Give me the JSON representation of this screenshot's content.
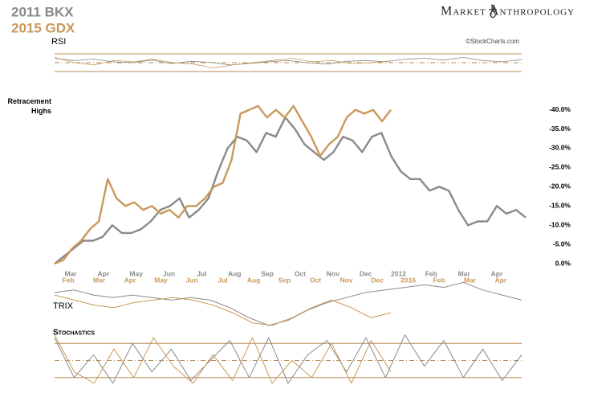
{
  "header": {
    "brand": "Market Anthropology",
    "credit": "©StockCharts.com"
  },
  "chart_data": [
    {
      "type": "line",
      "annotation": "Retracement Highs",
      "series": [
        {
          "name": "2011 BKX",
          "color": "#8a8a8a",
          "values": [
            0,
            -2,
            -4,
            -6,
            -6,
            -7,
            -10,
            -8,
            -8,
            -9,
            -11,
            -14,
            -15,
            -17,
            -12,
            -14,
            -17,
            -24,
            -30,
            -33,
            -32,
            -29,
            -34,
            -33,
            -38,
            -35,
            -31,
            -29,
            -27,
            -29,
            -33,
            -32,
            -29,
            -33,
            -34,
            -28,
            -24,
            -22,
            -22,
            -19,
            -20,
            -19,
            -14,
            -10,
            -11,
            -11,
            -15,
            -13,
            -14,
            -12
          ]
        },
        {
          "name": "2015 GDX",
          "color": "#c8995a",
          "values": [
            0,
            -1,
            -4,
            -6,
            -9,
            -11,
            -22,
            -17,
            -15,
            -16,
            -14,
            -15,
            -13,
            -14,
            -12,
            -15,
            -15,
            -17,
            -20,
            -21,
            -27,
            -39,
            -40,
            -41,
            -38,
            -40,
            -38,
            -41,
            -37,
            -33,
            -28,
            -31,
            -33,
            -38,
            -40,
            -39,
            -40,
            -37,
            -40
          ]
        }
      ],
      "x_axes": [
        {
          "color": "#8a8a8a",
          "categories": [
            "Mar",
            "Apr",
            "May",
            "Jun",
            "Jul",
            "Aug",
            "Sep",
            "Oct",
            "Nov",
            "Dec",
            "2012",
            "Feb",
            "Mar",
            "Apr"
          ]
        },
        {
          "color": "#c8995a",
          "categories": [
            "Feb",
            "Mar",
            "Apr",
            "May",
            "Jun",
            "Jul",
            "Aug",
            "Sep",
            "Oct",
            "Nov",
            "Dec",
            "2016",
            "Feb",
            "Mar",
            "Apr"
          ]
        }
      ],
      "ylim": [
        1,
        -42
      ],
      "yticks": [
        {
          "value": 0,
          "label": "0.0%"
        },
        {
          "value": -5,
          "label": "-5.0%"
        },
        {
          "value": -10,
          "label": "-10.0%"
        },
        {
          "value": -15,
          "label": "-15.0%"
        },
        {
          "value": -20,
          "label": "-20.0%"
        },
        {
          "value": -25,
          "label": "-25.0%"
        },
        {
          "value": -30,
          "label": "-30.0%"
        },
        {
          "value": -35,
          "label": "-35.0%"
        },
        {
          "value": -40,
          "label": "-40.0%"
        }
      ]
    },
    {
      "type": "line",
      "title": "RSI",
      "ylim": [
        20,
        80
      ],
      "levels": [
        70,
        50,
        30
      ],
      "series": [
        {
          "color": "#8a8a8a",
          "values": [
            60,
            55,
            58,
            52,
            50,
            56,
            48,
            53,
            51,
            45,
            48,
            52,
            55,
            50,
            47,
            53,
            55,
            52,
            58,
            60,
            56,
            62,
            55,
            52,
            57
          ]
        },
        {
          "color": "#c8995a",
          "values": [
            62,
            50,
            45,
            55,
            52,
            58,
            50,
            47,
            38,
            45,
            50,
            55,
            60,
            52,
            55,
            48,
            50,
            54
          ]
        }
      ]
    },
    {
      "type": "line",
      "title": "TRIX",
      "ylim": [
        -1,
        1
      ],
      "series": [
        {
          "color": "#8a8a8a",
          "values": [
            0.4,
            0.5,
            0.3,
            0.2,
            0.3,
            0.2,
            0.1,
            0.2,
            0.1,
            -0.2,
            -0.6,
            -0.9,
            -0.7,
            -0.3,
            0,
            0.2,
            0.4,
            0.5,
            0.6,
            0.7,
            0.6,
            0.8,
            0.5,
            0.3,
            0.1
          ]
        },
        {
          "color": "#c8995a",
          "values": [
            0.3,
            0.1,
            -0.1,
            -0.2,
            0,
            0.1,
            0.2,
            0.1,
            -0.1,
            -0.4,
            -0.8,
            -0.9,
            -0.6,
            -0.2,
            0.1,
            -0.2,
            -0.6,
            -0.4
          ]
        }
      ]
    },
    {
      "type": "line",
      "title": "Stochastics",
      "ylim": [
        0,
        100
      ],
      "levels": [
        80,
        50,
        20
      ],
      "series": [
        {
          "color": "#8a8a8a",
          "values": [
            90,
            20,
            60,
            10,
            80,
            30,
            70,
            15,
            50,
            85,
            20,
            90,
            10,
            60,
            85,
            30,
            90,
            20,
            95,
            40,
            85,
            20,
            70,
            15,
            60
          ]
        },
        {
          "color": "#c8995a",
          "values": [
            95,
            30,
            10,
            70,
            20,
            90,
            40,
            10,
            60,
            15,
            90,
            10,
            50,
            20,
            80,
            10,
            85,
            30
          ]
        }
      ]
    }
  ]
}
